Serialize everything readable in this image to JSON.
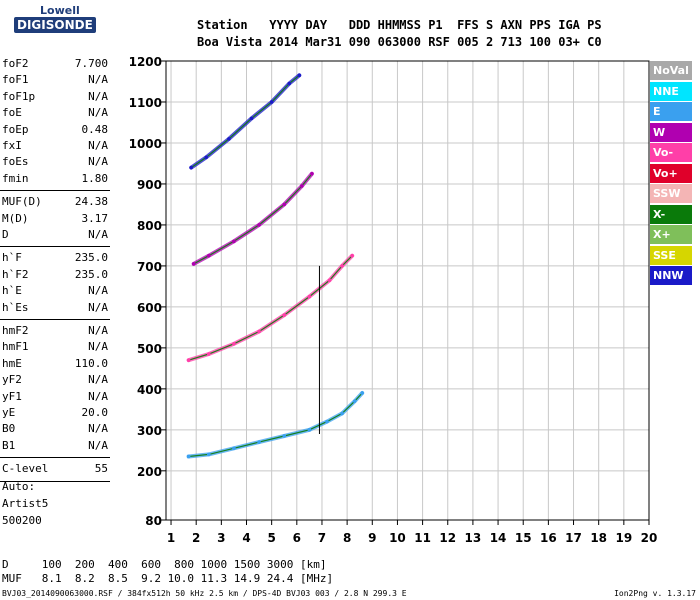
{
  "logo": {
    "top": "Lowell",
    "bottom": "DIGISONDE"
  },
  "header": {
    "line1": "Station   YYYY DAY   DDD HHMMSS P1  FFS S AXN PPS IGA PS",
    "line2": "Boa Vista 2014 Mar31 090 063000 RSF 005 2 713 100 03+ C0"
  },
  "params": {
    "g1": [
      [
        "foF2",
        "7.700"
      ],
      [
        "foF1",
        "N/A"
      ],
      [
        "foF1p",
        "N/A"
      ],
      [
        "foE",
        "N/A"
      ],
      [
        "foEp",
        "0.48"
      ],
      [
        "fxI",
        "N/A"
      ],
      [
        "foEs",
        "N/A"
      ],
      [
        "fmin",
        "1.80"
      ]
    ],
    "g2": [
      [
        "MUF(D)",
        "24.38"
      ],
      [
        "M(D)",
        "3.17"
      ],
      [
        "D",
        "N/A"
      ]
    ],
    "g3": [
      [
        "h`F",
        "235.0"
      ],
      [
        "h`F2",
        "235.0"
      ],
      [
        "h`E",
        "N/A"
      ],
      [
        "h`Es",
        "N/A"
      ]
    ],
    "g4": [
      [
        "hmF2",
        "N/A"
      ],
      [
        "hmF1",
        "N/A"
      ],
      [
        "hmE",
        "110.0"
      ],
      [
        "yF2",
        "N/A"
      ],
      [
        "yF1",
        "N/A"
      ],
      [
        "yE",
        "20.0"
      ],
      [
        "B0",
        "N/A"
      ],
      [
        "B1",
        "N/A"
      ]
    ],
    "g5": [
      [
        "C-level",
        "55"
      ]
    ]
  },
  "auto_block": [
    "Auto:",
    "Artist5",
    "500200"
  ],
  "legend": [
    {
      "label": "NoVal",
      "color": "#a9a9a9"
    },
    {
      "label": "NNE",
      "color": "#00e5ff"
    },
    {
      "label": "E",
      "color": "#3aa0ef"
    },
    {
      "label": "W",
      "color": "#b000b0"
    },
    {
      "label": "Vo-",
      "color": "#ff3fa8"
    },
    {
      "label": "Vo+",
      "color": "#e0002a"
    },
    {
      "label": "SSW",
      "color": "#f4b5b5"
    },
    {
      "label": "X-",
      "color": "#0a7a0a"
    },
    {
      "label": "X+",
      "color": "#7fbf5a"
    },
    {
      "label": "SSE",
      "color": "#d6d600"
    },
    {
      "label": "NNW",
      "color": "#1a1ac8"
    }
  ],
  "muf_table": {
    "d_line": "D     100  200  400  600  800 1000 1500 3000 [km]",
    "muf_line": "MUF   8.1  8.2  8.5  9.2 10.0 11.3 14.9 24.4 [MHz]"
  },
  "footer": {
    "left": "BVJ03_2014090063000.RSF / 384fx512h 50 kHz 2.5 km / DPS-4D BVJ03 003 / 2.8 N 299.3 E",
    "right": "Ion2Png v. 1.3.17"
  },
  "chart_data": {
    "type": "scatter",
    "title": "",
    "xlabel": "",
    "ylabel": "",
    "xlim": [
      0.8,
      20
    ],
    "ylim": [
      80,
      1200
    ],
    "x_ticks": [
      1,
      2,
      3,
      4,
      5,
      6,
      7,
      8,
      9,
      10,
      11,
      12,
      13,
      14,
      15,
      16,
      17,
      18,
      19,
      20
    ],
    "y_ticks": [
      80,
      200,
      300,
      400,
      500,
      600,
      700,
      800,
      900,
      1000,
      1100,
      1200
    ],
    "grid": true,
    "legend_position": "right",
    "traces": [
      {
        "name": "1st hop F trace",
        "color": "#3aa0ef",
        "points": [
          [
            1.7,
            235
          ],
          [
            2.5,
            240
          ],
          [
            3.5,
            255
          ],
          [
            4.5,
            270
          ],
          [
            5.5,
            285
          ],
          [
            6.5,
            300
          ],
          [
            7.2,
            320
          ],
          [
            7.8,
            340
          ],
          [
            8.3,
            370
          ],
          [
            8.6,
            390
          ]
        ]
      },
      {
        "name": "2nd hop F trace",
        "color": "#ff3fa8",
        "points": [
          [
            1.7,
            470
          ],
          [
            2.5,
            485
          ],
          [
            3.5,
            510
          ],
          [
            4.5,
            540
          ],
          [
            5.5,
            580
          ],
          [
            6.5,
            625
          ],
          [
            7.3,
            665
          ],
          [
            7.8,
            700
          ],
          [
            8.2,
            725
          ]
        ]
      },
      {
        "name": "3rd hop F trace",
        "color": "#b000b0",
        "points": [
          [
            1.9,
            705
          ],
          [
            2.5,
            725
          ],
          [
            3.5,
            760
          ],
          [
            4.5,
            800
          ],
          [
            5.5,
            850
          ],
          [
            6.2,
            895
          ],
          [
            6.6,
            925
          ]
        ]
      },
      {
        "name": "4th hop F trace",
        "color": "#1a1ac8",
        "points": [
          [
            1.8,
            940
          ],
          [
            2.4,
            965
          ],
          [
            3.3,
            1010
          ],
          [
            4.2,
            1060
          ],
          [
            5.0,
            1100
          ],
          [
            5.7,
            1145
          ],
          [
            6.1,
            1165
          ]
        ]
      }
    ],
    "spur_lines": [
      {
        "name": "vertical spur",
        "color": "#000000",
        "x": 6.9,
        "y_from": 290,
        "y_to": 700
      }
    ]
  }
}
